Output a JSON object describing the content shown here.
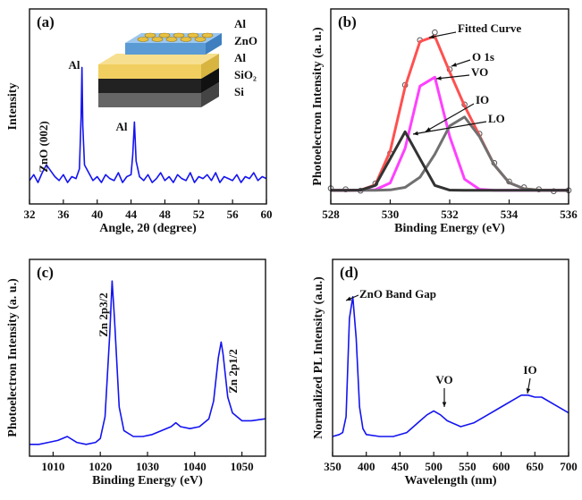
{
  "chart_data": [
    {
      "type": "line",
      "panel_label": "(a)",
      "xlabel": "Angle, 2θ (degree)",
      "ylabel": "Intensity",
      "xlim": [
        32,
        60
      ],
      "ylim": [
        0,
        100
      ],
      "xticks": [
        32,
        36,
        40,
        44,
        48,
        52,
        56,
        60
      ],
      "x": [
        32,
        32.5,
        33,
        33.5,
        34,
        34.5,
        35,
        35.5,
        36,
        36.5,
        37,
        37.5,
        37.9,
        38.1,
        38.2,
        38.3,
        38.5,
        39,
        39.5,
        40,
        40.5,
        41,
        41.5,
        42,
        42.5,
        43,
        43.5,
        44,
        44.2,
        44.4,
        44.6,
        45,
        45.5,
        46,
        46.5,
        47,
        47.5,
        48,
        48.5,
        49,
        49.5,
        50,
        50.5,
        51,
        51.5,
        52,
        52.5,
        53,
        53.5,
        54,
        54.5,
        55,
        55.5,
        56,
        56.5,
        57,
        57.5,
        58,
        58.5,
        59,
        59.5,
        60
      ],
      "series": [
        {
          "color": "#1414f0",
          "values": [
            12,
            15,
            11,
            16,
            20,
            17,
            14,
            12,
            15,
            11,
            14,
            13,
            18,
            45,
            70,
            40,
            20,
            16,
            12,
            14,
            11,
            15,
            13,
            12,
            16,
            11,
            14,
            15,
            25,
            42,
            22,
            14,
            12,
            15,
            11,
            13,
            16,
            12,
            14,
            11,
            15,
            13,
            12,
            16,
            11,
            14,
            13,
            15,
            12,
            16,
            11,
            14,
            13,
            12,
            15,
            11,
            14,
            13,
            16,
            12,
            14,
            13
          ]
        }
      ],
      "annotations": [
        "ZnO (002)",
        "Al",
        "Al"
      ],
      "inset_labels": [
        "Al",
        "ZnO",
        "Al",
        "SiO₂",
        "Si"
      ]
    },
    {
      "type": "line",
      "panel_label": "(b)",
      "xlabel": "Binding Energy (eV)",
      "ylabel": "Photoelectron Intensity (a. u.)",
      "xlim": [
        528,
        536
      ],
      "ylim": [
        0,
        100
      ],
      "xticks": [
        528,
        530,
        532,
        534,
        536
      ],
      "x": [
        528,
        528.5,
        529,
        529.5,
        530,
        530.5,
        531,
        531.5,
        532,
        532.5,
        533,
        533.5,
        534,
        534.5,
        535,
        535.5,
        536
      ],
      "series": [
        {
          "name": "O 1s",
          "color": "#555555",
          "style": "markers",
          "values": [
            8,
            7.5,
            6.8,
            10.5,
            26,
            61,
            84,
            88,
            69,
            51,
            36,
            21,
            11.5,
            8.5,
            7.5,
            6.5,
            7
          ]
        },
        {
          "name": "Fitted Curve",
          "color": "#ff5050",
          "values": [
            7,
            7,
            7.1,
            9.8,
            27.2,
            60,
            83.3,
            86,
            67.7,
            50.3,
            35.1,
            20,
            10.9,
            7.8,
            7.1,
            7,
            7
          ]
        },
        {
          "name": "VO",
          "color": "#ff40ff",
          "values": [
            7,
            7,
            7,
            7.3,
            10.8,
            28.5,
            60.4,
            65,
            34.6,
            12.7,
            7.5,
            7,
            7,
            7,
            7,
            7,
            7
          ]
        },
        {
          "name": "IO",
          "color": "#707070",
          "values": [
            7,
            7,
            7,
            7,
            7.2,
            8.5,
            13.7,
            25.5,
            40,
            44.6,
            34.6,
            20,
            10.9,
            7.8,
            7.1,
            7,
            7
          ]
        },
        {
          "name": "LO",
          "color": "#333333",
          "values": [
            7,
            7,
            7.1,
            9.5,
            23.2,
            37,
            23.2,
            9.5,
            7.1,
            7,
            7,
            7,
            7,
            7,
            7,
            7,
            7
          ]
        }
      ]
    },
    {
      "type": "line",
      "panel_label": "(c)",
      "xlabel": "Binding Energy (eV)",
      "ylabel": "Photoelectron Intensity (a. u.)",
      "xlim": [
        1005,
        1055
      ],
      "ylim": [
        0,
        100
      ],
      "xticks": [
        1010,
        1020,
        1030,
        1040,
        1050
      ],
      "x": [
        1005,
        1007,
        1009,
        1011,
        1013,
        1015,
        1017,
        1019,
        1020,
        1021,
        1022,
        1022.5,
        1023,
        1024,
        1025,
        1027,
        1029,
        1031,
        1033,
        1035,
        1036,
        1037,
        1039,
        1041,
        1043,
        1044,
        1045,
        1045.6,
        1046,
        1047,
        1048,
        1050,
        1052,
        1055
      ],
      "series": [
        {
          "color": "#1414f0",
          "values": [
            6,
            6,
            7,
            8,
            10,
            7,
            6,
            7,
            9,
            20,
            62,
            89,
            70,
            25,
            13,
            10,
            10,
            11,
            13,
            15,
            17,
            15,
            14,
            15,
            19,
            28,
            50,
            58,
            52,
            30,
            22,
            18,
            18,
            19
          ]
        }
      ],
      "annotations": [
        "Zn 2p3/2",
        "Zn 2p1/2"
      ]
    },
    {
      "type": "line",
      "panel_label": "(d)",
      "xlabel": "Wavelength (nm)",
      "ylabel": "Normalized PL Intensity (a.u.)",
      "xlim": [
        350,
        700
      ],
      "ylim": [
        0,
        100
      ],
      "xticks": [
        350,
        400,
        450,
        500,
        550,
        600,
        650,
        700
      ],
      "x": [
        350,
        360,
        365,
        370,
        375,
        380,
        385,
        390,
        395,
        400,
        420,
        440,
        460,
        480,
        490,
        500,
        510,
        520,
        540,
        560,
        580,
        600,
        620,
        630,
        640,
        650,
        660,
        680,
        700
      ],
      "series": [
        {
          "color": "#1414f0",
          "values": [
            10,
            11,
            12,
            20,
            70,
            81,
            60,
            25,
            14,
            11,
            10,
            10,
            12,
            18,
            21,
            23,
            21,
            18,
            15,
            17,
            21,
            25,
            29,
            31,
            31,
            30,
            30,
            26,
            22
          ]
        }
      ],
      "annotations": [
        "ZnO Band Gap",
        "VO",
        "IO"
      ]
    }
  ]
}
